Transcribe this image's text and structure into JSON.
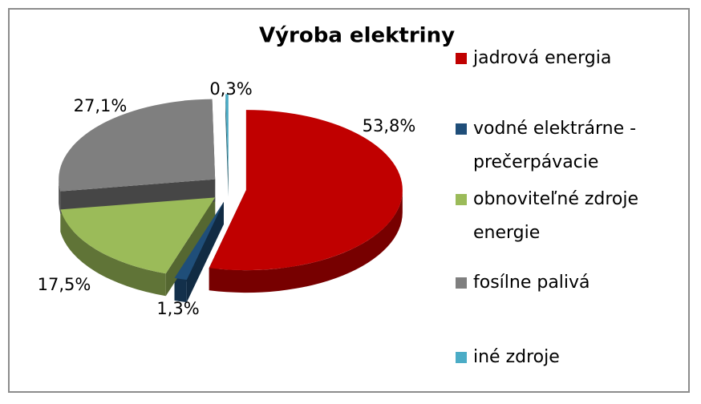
{
  "chart_data": {
    "type": "pie",
    "title": "Výroba elektriny",
    "categories": [
      "jadrová energia",
      "vodné elektrárne - prečerpávacie",
      "obnoviteľné zdroje energie",
      "fosílne palivá",
      "iné zdroje"
    ],
    "values": [
      53.8,
      1.3,
      17.5,
      27.1,
      0.3
    ],
    "value_labels": [
      "53,8%",
      "1,3%",
      "17,5%",
      "27,1%",
      "0,3%"
    ],
    "colors": [
      "#c00000",
      "#1f4e79",
      "#9bbb59",
      "#7f7f7f",
      "#4bacc6"
    ],
    "legend": "right"
  }
}
